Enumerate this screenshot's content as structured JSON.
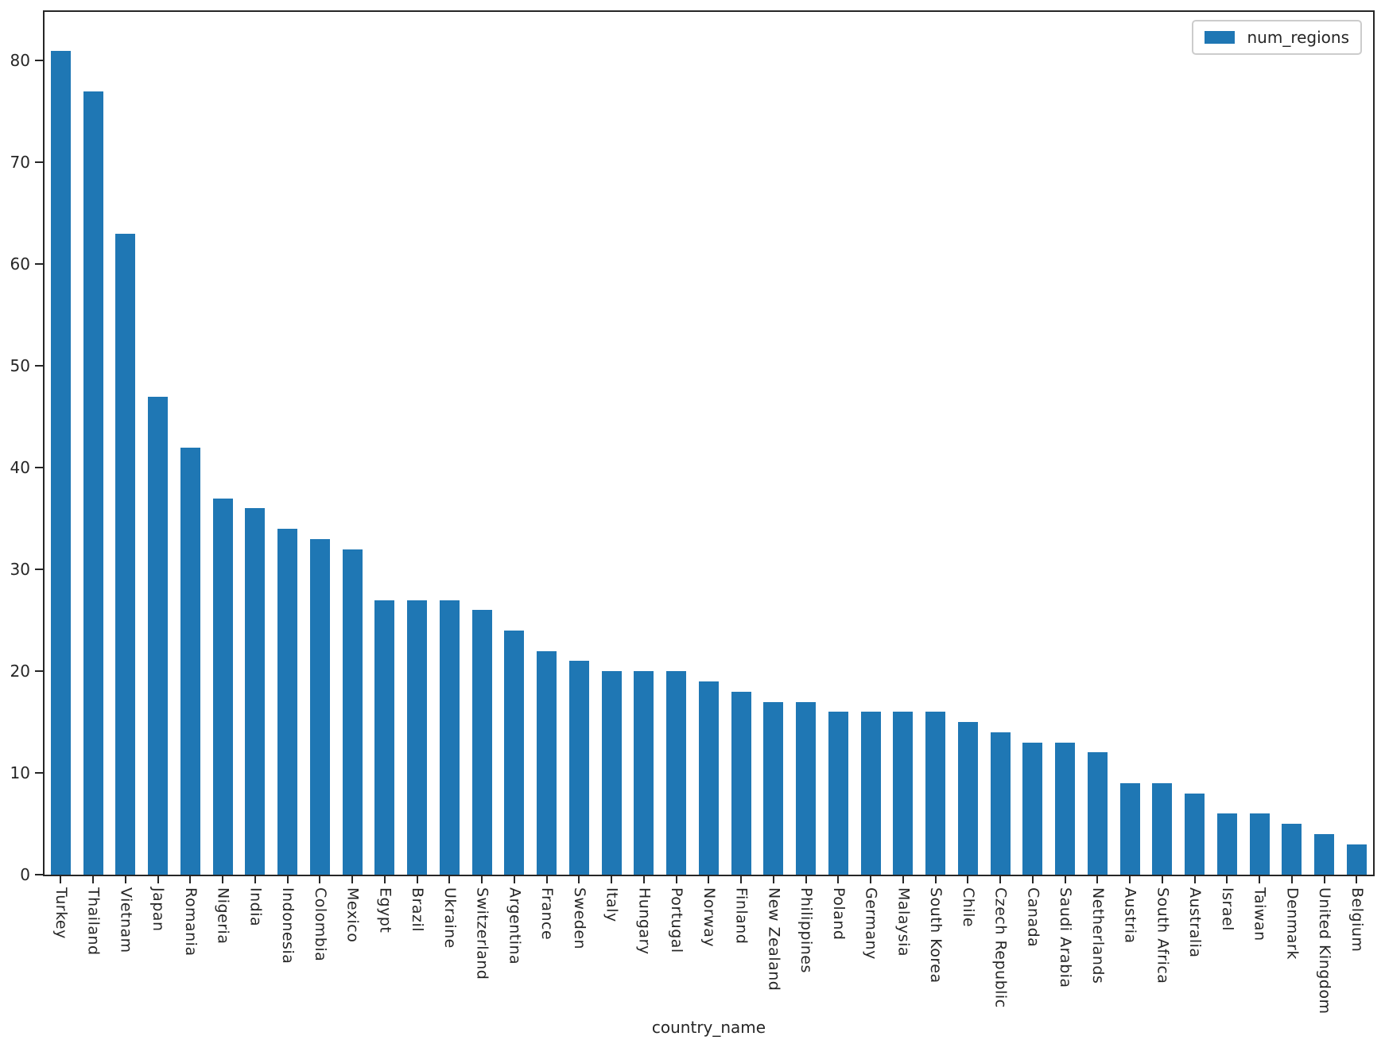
{
  "chart_data": {
    "type": "bar",
    "title": "",
    "xlabel": "country_name",
    "ylabel": "",
    "legend_label": "num_regions",
    "legend_position": "upper right",
    "grid": false,
    "bar_color": "#1f77b4",
    "axis_color": "#262626",
    "ylim": [
      0,
      84.8
    ],
    "yticks": [
      0,
      10,
      20,
      30,
      40,
      50,
      60,
      70,
      80
    ],
    "categories": [
      "Turkey",
      "Thailand",
      "Vietnam",
      "Japan",
      "Romania",
      "Nigeria",
      "India",
      "Indonesia",
      "Colombia",
      "Mexico",
      "Egypt",
      "Brazil",
      "Ukraine",
      "Switzerland",
      "Argentina",
      "France",
      "Sweden",
      "Italy",
      "Hungary",
      "Portugal",
      "Norway",
      "Finland",
      "New Zealand",
      "Philippines",
      "Poland",
      "Germany",
      "Malaysia",
      "South Korea",
      "Chile",
      "Czech Republic",
      "Canada",
      "Saudi Arabia",
      "Netherlands",
      "Austria",
      "South Africa",
      "Australia",
      "Israel",
      "Taiwan",
      "Denmark",
      "United Kingdom",
      "Belgium"
    ],
    "series": [
      {
        "name": "num_regions",
        "values": [
          81,
          77,
          63,
          47,
          42,
          37,
          36,
          34,
          33,
          32,
          27,
          27,
          27,
          26,
          24,
          22,
          21,
          20,
          20,
          20,
          19,
          18,
          17,
          17,
          16,
          16,
          16,
          16,
          15,
          14,
          13,
          13,
          12,
          9,
          9,
          8,
          6,
          6,
          5,
          4,
          3
        ]
      }
    ]
  }
}
